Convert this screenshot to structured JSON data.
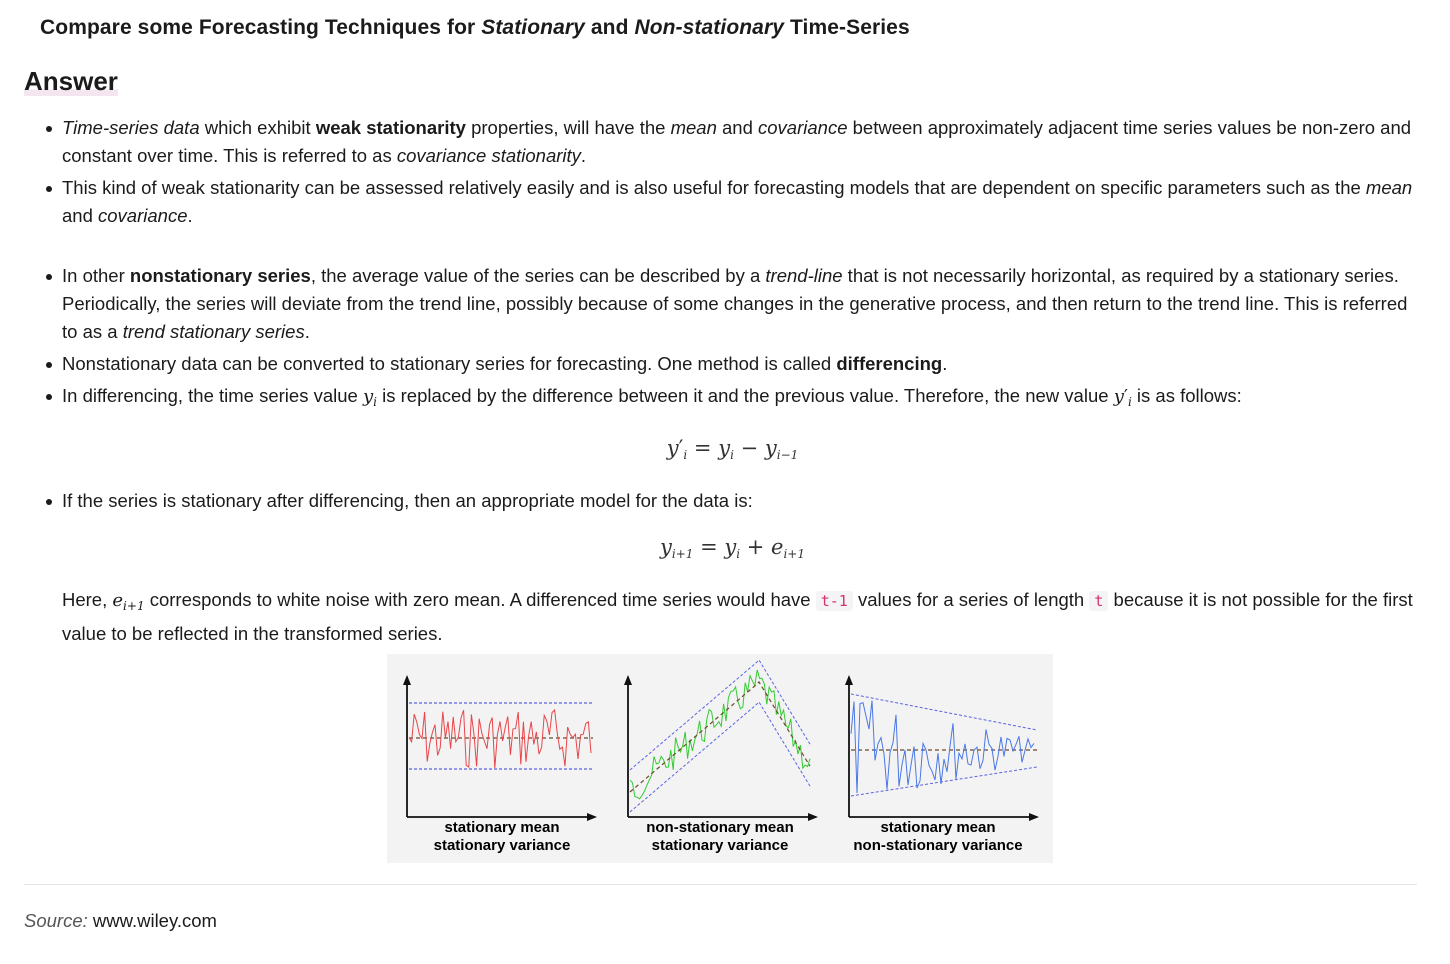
{
  "title": {
    "part1": "Compare some Forecasting Techniques for ",
    "em1": "Stationary",
    "part2": " and ",
    "em2": "Non-stationary",
    "part3": " Time-Series"
  },
  "answer_heading": "Answer",
  "bullets": {
    "b1": {
      "em1": "Time-series data",
      "t1": " which exhibit ",
      "strong1": "weak stationarity",
      "t2": " properties, will have the ",
      "em2": "mean",
      "t3": " and ",
      "em3": "covariance",
      "t4": " between approximately adjacent time series values be non-zero and constant over time. This is referred to as ",
      "em4": "covariance stationarity",
      "t5": "."
    },
    "b2": {
      "t1": "This kind of weak stationarity can be assessed relatively easily and is also useful for forecasting models that are dependent on specific parameters such as the ",
      "em1": "mean",
      "t2": " and ",
      "em2": "covariance",
      "t3": "."
    },
    "b3": {
      "t1": "In other ",
      "strong1": "nonstationary series",
      "t2": ", the average value of the series can be described by a ",
      "em1": "trend-line",
      "t3": " that is not necessarily horizontal, as required by a stationary series. Periodically, the series will deviate from the trend line, possibly because of some changes in the generative process, and then return to the trend line. This is referred to as a ",
      "em2": "trend stationary series",
      "t4": "."
    },
    "b4": {
      "t1": "Nonstationary data can be converted to stationary series for forecasting. One method is called ",
      "strong1": "differencing",
      "t2": "."
    },
    "b5": {
      "t1": "In differencing, the time series value ",
      "t2": " is replaced by the difference between it and the previous value. Therefore, the new value ",
      "t3": " is as follows:"
    },
    "b6": {
      "t1": "If the series is stationary after differencing, then an appropriate model for the data is:"
    }
  },
  "math": {
    "y": "y",
    "e": "e",
    "i": "i",
    "i_minus_1": "i−1",
    "i_plus_1": "i+1",
    "prime": "′",
    "equals": " = ",
    "minus": " − ",
    "plus": " + "
  },
  "paragraph": {
    "t1": "Here, ",
    "t2": " corresponds to white noise with zero mean. A differenced time series would have ",
    "code1": "t-1",
    "t3": " values for a series of length ",
    "code2": "t",
    "t4": " because it is not possible for the first value to be reflected in the transformed series."
  },
  "figure": {
    "panels": [
      {
        "line1": "stationary mean",
        "line2": "stationary variance",
        "series_color": "#e8464a"
      },
      {
        "line1": "non-stationary mean",
        "line2": "stationary variance",
        "series_color": "#33cc33"
      },
      {
        "line1": "stationary mean",
        "line2": "non-stationary variance",
        "series_color": "#4a78e6"
      }
    ],
    "band_color": "#5b63e0",
    "mean_color": "#6a4a2a"
  },
  "source": {
    "label": "Source:",
    "text": " www.wiley.com"
  }
}
